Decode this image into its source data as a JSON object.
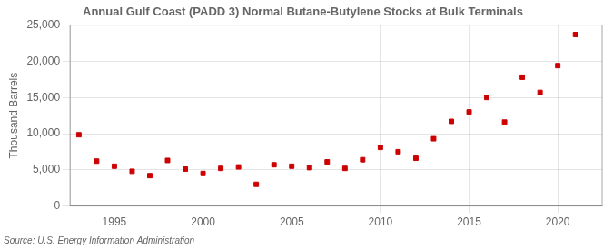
{
  "chart_data": {
    "type": "scatter",
    "title": "Annual Gulf Coast (PADD 3) Normal Butane-Butylene Stocks at Bulk Terminals",
    "ylabel": "Thousand Barrels",
    "annotations": [
      "Source: U.S. Energy Information Administration"
    ],
    "x": [
      1993,
      1994,
      1995,
      1996,
      1997,
      1998,
      1999,
      2000,
      2001,
      2002,
      2003,
      2004,
      2005,
      2006,
      2007,
      2008,
      2009,
      2010,
      2011,
      2012,
      2013,
      2014,
      2015,
      2016,
      2017,
      2018,
      2019,
      2020,
      2021
    ],
    "values": [
      9850,
      6200,
      5500,
      4800,
      4200,
      6300,
      5100,
      4500,
      5200,
      5400,
      3000,
      5700,
      5500,
      5300,
      6100,
      5200,
      6400,
      8100,
      7500,
      6600,
      9300,
      11700,
      13000,
      15000,
      11600,
      17800,
      15700,
      19400,
      23700
    ],
    "color": "#cc0000",
    "marker": "square",
    "xlim": [
      1992.5,
      2022.5
    ],
    "xticks": [
      1995,
      2000,
      2005,
      2010,
      2015,
      2020
    ],
    "ylim": [
      0,
      25000
    ],
    "yticks": [
      0,
      {
        "value": 5000,
        "label": "5,000"
      },
      {
        "value": 10000,
        "label": "10,000"
      },
      {
        "value": 15000,
        "label": "15,000"
      },
      {
        "value": 20000,
        "label": "20,000"
      },
      {
        "value": 25000,
        "label": "25,000"
      }
    ],
    "grid": true
  }
}
